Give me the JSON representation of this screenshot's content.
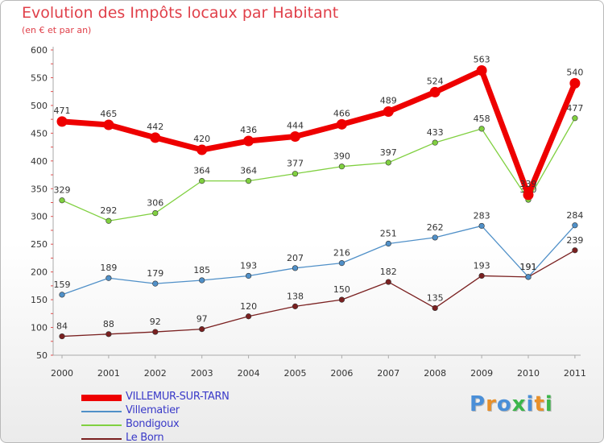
{
  "title": "Evolution des Impôts locaux par Habitant",
  "subtitle": "(en € et par an)",
  "logo": {
    "text": "Proxiti",
    "colors": [
      "#4a8fd8",
      "#e8902a",
      "#4a8fd8",
      "#3cb64a",
      "#4a8fd8",
      "#e8902a",
      "#3cb64a"
    ]
  },
  "chart_data": {
    "type": "line",
    "title": "Evolution des Impôts locaux par Habitant",
    "subtitle": "(en € et par an)",
    "x": [
      "2000",
      "2001",
      "2002",
      "2003",
      "2004",
      "2005",
      "2006",
      "2007",
      "2008",
      "2009",
      "2010",
      "2011"
    ],
    "ylim": [
      50,
      600
    ],
    "yticks": [
      50,
      100,
      150,
      200,
      250,
      300,
      350,
      400,
      450,
      500,
      550,
      600
    ],
    "grid": false,
    "legend_position": "bottom-left",
    "series": [
      {
        "name": "VILLEMUR-SUR-TARN",
        "color": "#ee0000",
        "values": [
          471,
          465,
          442,
          420,
          436,
          444,
          466,
          489,
          524,
          563,
          339,
          540
        ]
      },
      {
        "name": "Villematier",
        "color": "#5090c8",
        "values": [
          159,
          189,
          179,
          185,
          193,
          207,
          216,
          251,
          262,
          283,
          191,
          284
        ]
      },
      {
        "name": "Bondigoux",
        "color": "#80d040",
        "values": [
          329,
          292,
          306,
          364,
          364,
          377,
          390,
          397,
          433,
          458,
          330,
          477
        ]
      },
      {
        "name": "Le Born",
        "color": "#7a2020",
        "values": [
          84,
          88,
          92,
          97,
          120,
          138,
          150,
          182,
          135,
          193,
          191,
          239
        ]
      }
    ]
  }
}
